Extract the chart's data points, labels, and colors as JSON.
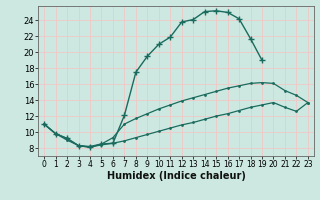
{
  "xlabel": "Humidex (Indice chaleur)",
  "bg_color": "#cce8e0",
  "grid_color": "#f0c8c8",
  "line_color": "#1a6b5e",
  "xlim": [
    -0.5,
    23.5
  ],
  "ylim": [
    7.0,
    25.8
  ],
  "xticks": [
    0,
    1,
    2,
    3,
    4,
    5,
    6,
    7,
    8,
    9,
    10,
    11,
    12,
    13,
    14,
    15,
    16,
    17,
    18,
    19,
    20,
    21,
    22,
    23
  ],
  "yticks": [
    8,
    10,
    12,
    14,
    16,
    18,
    20,
    22,
    24
  ],
  "line1_x": [
    0,
    1,
    2,
    3,
    4,
    5,
    6,
    7,
    8,
    9,
    10,
    11,
    12,
    13,
    14,
    15,
    16,
    17,
    18,
    19
  ],
  "line1_y": [
    11.0,
    9.8,
    9.2,
    8.3,
    8.1,
    8.5,
    8.6,
    12.1,
    17.5,
    19.5,
    21.0,
    21.9,
    23.8,
    24.1,
    25.1,
    25.2,
    25.0,
    24.2,
    21.7,
    19.0
  ],
  "line2_x": [
    0,
    1,
    2,
    3,
    4,
    5,
    6,
    7,
    8,
    9,
    10,
    11,
    12,
    13,
    14,
    15,
    16,
    17,
    18,
    19,
    20,
    21,
    22,
    23
  ],
  "line2_y": [
    11.0,
    9.8,
    9.2,
    8.3,
    8.2,
    8.5,
    9.3,
    11.0,
    11.7,
    12.3,
    12.9,
    13.4,
    13.9,
    14.3,
    14.7,
    15.1,
    15.5,
    15.8,
    16.1,
    16.2,
    16.1,
    15.2,
    14.6,
    13.7
  ],
  "line3_x": [
    0,
    1,
    2,
    3,
    4,
    5,
    6,
    7,
    8,
    9,
    10,
    11,
    12,
    13,
    14,
    15,
    16,
    17,
    18,
    19,
    20,
    21,
    22,
    23
  ],
  "line3_y": [
    11.0,
    9.8,
    9.0,
    8.3,
    8.1,
    8.4,
    8.6,
    8.9,
    9.3,
    9.7,
    10.1,
    10.5,
    10.9,
    11.2,
    11.6,
    12.0,
    12.3,
    12.7,
    13.1,
    13.4,
    13.7,
    13.1,
    12.6,
    13.7
  ]
}
